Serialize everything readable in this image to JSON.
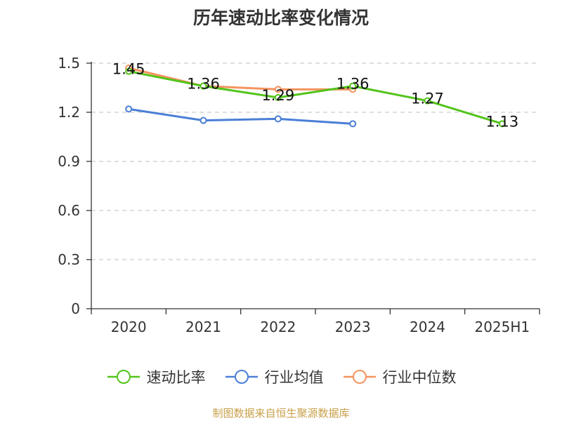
{
  "chart_data": {
    "type": "line",
    "title": "历年速动比率变化情况",
    "categories": [
      "2020",
      "2021",
      "2022",
      "2023",
      "2024",
      "2025H1"
    ],
    "ylim": [
      0,
      1.5
    ],
    "yticks": [
      "0",
      "0.3",
      "0.6",
      "0.9",
      "1.2",
      "1.5"
    ],
    "grid": true,
    "legend_position": "bottom",
    "series": [
      {
        "name": "速动比率",
        "color": "#52c41a",
        "values": [
          1.45,
          1.36,
          1.29,
          1.36,
          1.27,
          1.13
        ],
        "labels": [
          "1.45",
          "1.36",
          "1.29",
          "1.36",
          "1.27",
          "1.13"
        ]
      },
      {
        "name": "行业均值",
        "color": "#4a7fd6",
        "values": [
          1.22,
          1.15,
          1.16,
          1.13,
          null,
          null
        ]
      },
      {
        "name": "行业中位数",
        "color": "#f4935f",
        "values": [
          1.47,
          1.36,
          1.34,
          1.34,
          null,
          null
        ]
      }
    ]
  },
  "source_text": "制图数据来自恒生聚源数据库"
}
